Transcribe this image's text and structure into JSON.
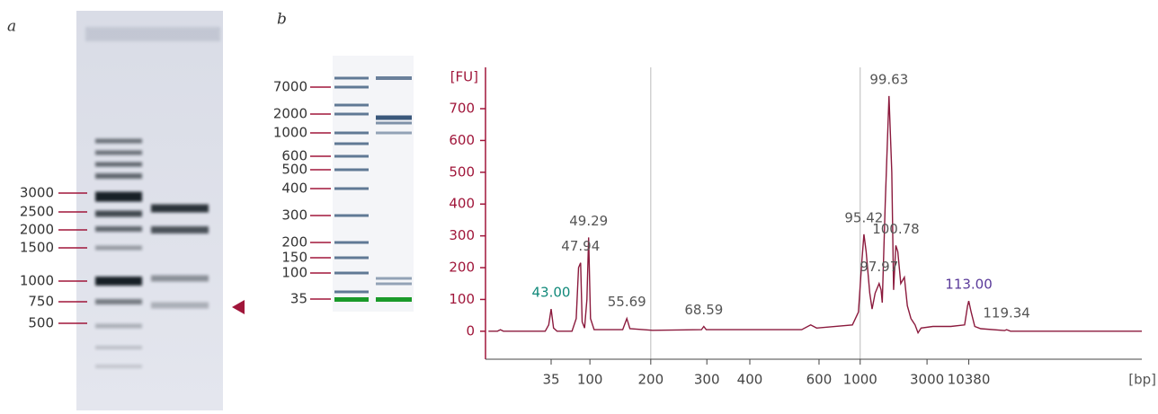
{
  "panels": {
    "a": {
      "label": "a",
      "ladder_labels": [
        "3000",
        "2500",
        "2000",
        "1500",
        "1000",
        "750",
        "500"
      ]
    },
    "b": {
      "label": "b",
      "ladder_labels": [
        "7000",
        "2000",
        "1000",
        "600",
        "500",
        "400",
        "300",
        "200",
        "150",
        "100",
        "35"
      ]
    }
  },
  "chart_data": {
    "type": "line",
    "ylabel": "[FU]",
    "xlabel": "[bp]",
    "color": "#8b1a3d",
    "axis_color": "#a0163a",
    "x": [
      32.5,
      34,
      34.5,
      35,
      42,
      42.6,
      43,
      43.4,
      44,
      46.5,
      47.2,
      47.6,
      47.94,
      48.2,
      48.6,
      49.0,
      49.29,
      49.6,
      50.2,
      55,
      55.69,
      56.2,
      60,
      68.2,
      68.59,
      69,
      85,
      86.5,
      87.5,
      93.5,
      94.5,
      95.0,
      95.42,
      95.8,
      96.4,
      96.8,
      97.3,
      97.97,
      98.3,
      98.5,
      99.0,
      99.63,
      100.1,
      100.4,
      100.78,
      101.1,
      101.6,
      102.2,
      102.7,
      103.3,
      104,
      104.5,
      105,
      107,
      110,
      112.3,
      112.8,
      113.0,
      113.4,
      114,
      115,
      119,
      119.34,
      120,
      130,
      142
    ],
    "values": [
      0,
      0,
      5,
      0,
      0,
      20,
      70,
      10,
      0,
      0,
      40,
      200,
      215,
      30,
      10,
      100,
      295,
      40,
      5,
      5,
      40,
      8,
      3,
      5,
      15,
      5,
      5,
      20,
      10,
      20,
      60,
      200,
      305,
      250,
      120,
      70,
      120,
      150,
      130,
      90,
      400,
      740,
      500,
      130,
      270,
      250,
      150,
      170,
      80,
      40,
      20,
      -5,
      10,
      15,
      15,
      20,
      80,
      95,
      60,
      15,
      8,
      2,
      5,
      0,
      0,
      0
    ],
    "xlim": [
      32,
      142
    ],
    "ylim": [
      -88,
      830
    ],
    "yticks": [
      0,
      100,
      200,
      300,
      400,
      500,
      600,
      700
    ],
    "xticks": [
      {
        "value": 43.0,
        "label": "35"
      },
      {
        "value": 49.5,
        "label": "100"
      },
      {
        "value": 59.7,
        "label": "200"
      },
      {
        "value": 69.1,
        "label": "300"
      },
      {
        "value": 76.3,
        "label": "400"
      },
      {
        "value": 87.9,
        "label": "600"
      },
      {
        "value": 94.8,
        "label": "1000"
      },
      {
        "value": 106.0,
        "label": "3000"
      },
      {
        "value": 113.0,
        "label": "10380"
      }
    ],
    "vlines": [
      59.7,
      94.8
    ],
    "annotations": [
      {
        "text": "43.00",
        "x": 43.0,
        "y": 70,
        "color": "#11897a"
      },
      {
        "text": "47.94",
        "x": 47.94,
        "y": 215,
        "color": "#555555"
      },
      {
        "text": "49.29",
        "x": 49.29,
        "y": 295,
        "color": "#555555"
      },
      {
        "text": "55.69",
        "x": 55.69,
        "y": 40,
        "color": "#555555"
      },
      {
        "text": "68.59",
        "x": 68.59,
        "y": 15,
        "color": "#555555"
      },
      {
        "text": "95.42",
        "x": 95.42,
        "y": 305,
        "color": "#555555"
      },
      {
        "text": "97.97",
        "x": 97.97,
        "y": 150,
        "color": "#555555"
      },
      {
        "text": "99.63",
        "x": 99.63,
        "y": 740,
        "color": "#555555"
      },
      {
        "text": "100.78",
        "x": 100.78,
        "y": 270,
        "color": "#555555"
      },
      {
        "text": "113.00",
        "x": 113.0,
        "y": 95,
        "color": "#5a3a9a"
      },
      {
        "text": "119.34",
        "x": 119.34,
        "y": 5,
        "color": "#555555"
      }
    ]
  }
}
